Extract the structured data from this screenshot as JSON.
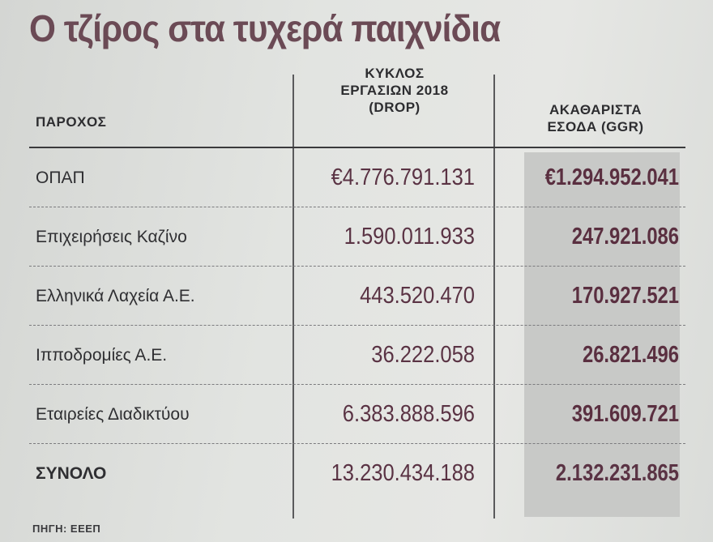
{
  "title": "Ο τζίρος στα τυχερά παιχνίδια",
  "table": {
    "headers": {
      "provider": "ΠΑΡΟΧΟΣ",
      "drop_line1": "ΚΥΚΛΟΣ",
      "drop_line2": "ΕΡΓΑΣΙΩΝ 2018",
      "drop_line3": "(DROP)",
      "ggr_line1": "ΑΚΑΘΑΡΙΣΤΑ",
      "ggr_line2": "ΕΣΟΔΑ (GGR)"
    },
    "rows": [
      {
        "name": "ΟΠΑΠ",
        "drop": "€4.776.791.131",
        "ggr": "€1.294.952.041"
      },
      {
        "name": "Επιχειρήσεις Καζίνο",
        "drop": "1.590.011.933",
        "ggr": "247.921.086"
      },
      {
        "name": "Ελληνικά Λαχεία Α.Ε.",
        "drop": "443.520.470",
        "ggr": "170.927.521"
      },
      {
        "name": "Ιπποδρομίες Α.Ε.",
        "drop": "36.222.058",
        "ggr": "26.821.496"
      },
      {
        "name": "Εταιρείες Διαδικτύου",
        "drop": "6.383.888.596",
        "ggr": "391.609.721"
      }
    ],
    "total": {
      "name": "ΣΥΝΟΛΟ",
      "drop": "13.230.434.188",
      "ggr": "2.132.231.865"
    }
  },
  "source": "ΠΗΓΗ: ΕΕΕΠ",
  "colors": {
    "title": "#6b4a55",
    "values": "#5a3344",
    "band": "#c8c9c7"
  }
}
